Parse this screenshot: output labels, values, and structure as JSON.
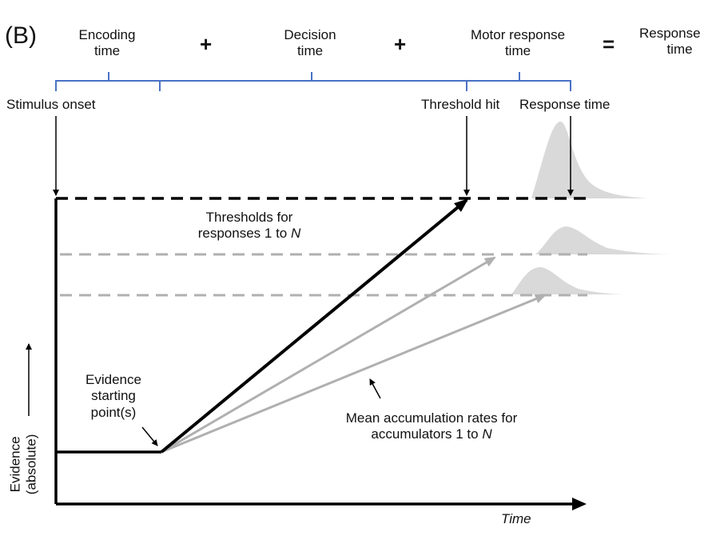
{
  "panel_label": "(B)",
  "header": {
    "encoding": [
      "Encoding",
      "time"
    ],
    "plus1": "+",
    "decision": [
      "Decision",
      "time"
    ],
    "plus2": "+",
    "motor": [
      "Motor response",
      "time"
    ],
    "equals": "=",
    "response": [
      "Response",
      "time"
    ]
  },
  "events": {
    "stimulus_onset": "Stimulus onset",
    "threshold_hit": "Threshold hit",
    "response_time": "Response time"
  },
  "labels": {
    "thresholds_line1": "Thresholds for",
    "thresholds_line2_prefix": "responses 1 to ",
    "thresholds_line2_var": "N",
    "starting_point": [
      "Evidence",
      "starting",
      "point(s)"
    ],
    "rates_line1": "Mean accumulation rates for",
    "rates_line2_prefix": "accumulators 1 to ",
    "rates_line2_var": "N",
    "y_axis": [
      "Evidence",
      "(absolute)"
    ],
    "x_axis": "Time"
  },
  "colors": {
    "bracket": "#4a72c4",
    "main": "#000000",
    "secondary": "#b0b0b0",
    "distribution": "#d9d9d9"
  }
}
